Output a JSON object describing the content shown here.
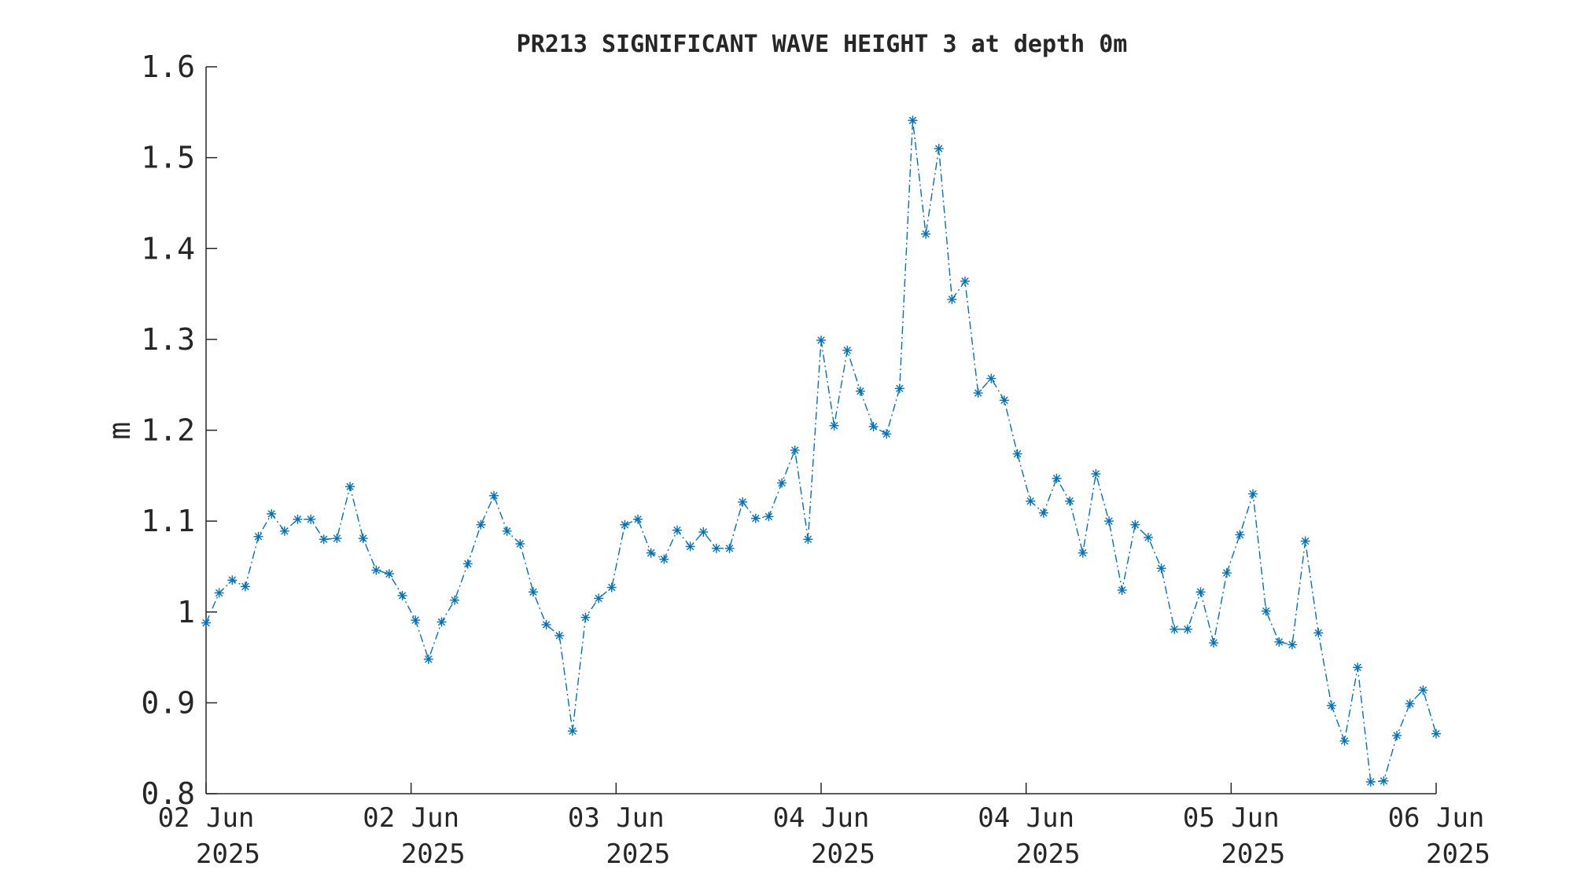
{
  "chart_data": {
    "type": "line",
    "title": "PR213 SIGNIFICANT WAVE HEIGHT 3 at depth 0m",
    "ylabel": "m",
    "xlabel": "",
    "ylim": [
      0.8,
      1.6
    ],
    "yticks": [
      "0.8",
      "0.9",
      "1",
      "1.1",
      "1.2",
      "1.3",
      "1.4",
      "1.5",
      "1.6"
    ],
    "xticks": [
      {
        "line1": "02 Jun",
        "line2": "2025"
      },
      {
        "line1": "02 Jun",
        "line2": "2025"
      },
      {
        "line1": "03 Jun",
        "line2": "2025"
      },
      {
        "line1": "04 Jun",
        "line2": "2025"
      },
      {
        "line1": "04 Jun",
        "line2": "2025"
      },
      {
        "line1": "05 Jun",
        "line2": "2025"
      },
      {
        "line1": "06 Jun",
        "line2": "2025"
      }
    ],
    "line_style": "dash-dot",
    "marker": "asterisk",
    "color": "#0072BD",
    "series": [
      {
        "values": [
          0.988,
          1.021,
          1.035,
          1.028,
          1.083,
          1.108,
          1.089,
          1.102,
          1.102,
          1.08,
          1.081,
          1.138,
          1.081,
          1.046,
          1.042,
          1.018,
          0.991,
          0.948,
          0.989,
          1.013,
          1.053,
          1.096,
          1.128,
          1.089,
          1.075,
          1.022,
          0.986,
          0.974,
          0.869,
          0.994,
          1.015,
          1.027,
          1.096,
          1.102,
          1.065,
          1.058,
          1.09,
          1.072,
          1.088,
          1.07,
          1.07,
          1.121,
          1.103,
          1.105,
          1.142,
          1.178,
          1.08,
          1.299,
          1.205,
          1.288,
          1.243,
          1.204,
          1.196,
          1.246,
          1.541,
          1.416,
          1.51,
          1.344,
          1.364,
          1.241,
          1.257,
          1.233,
          1.174,
          1.122,
          1.109,
          1.147,
          1.122,
          1.065,
          1.152,
          1.1,
          1.024,
          1.096,
          1.082,
          1.048,
          0.981,
          0.981,
          1.022,
          0.966,
          1.043,
          1.085,
          1.13,
          1.001,
          0.967,
          0.964,
          1.078,
          0.977,
          0.897,
          0.858,
          0.939,
          0.813,
          0.814,
          0.864,
          0.899,
          0.914,
          0.866
        ]
      }
    ]
  }
}
